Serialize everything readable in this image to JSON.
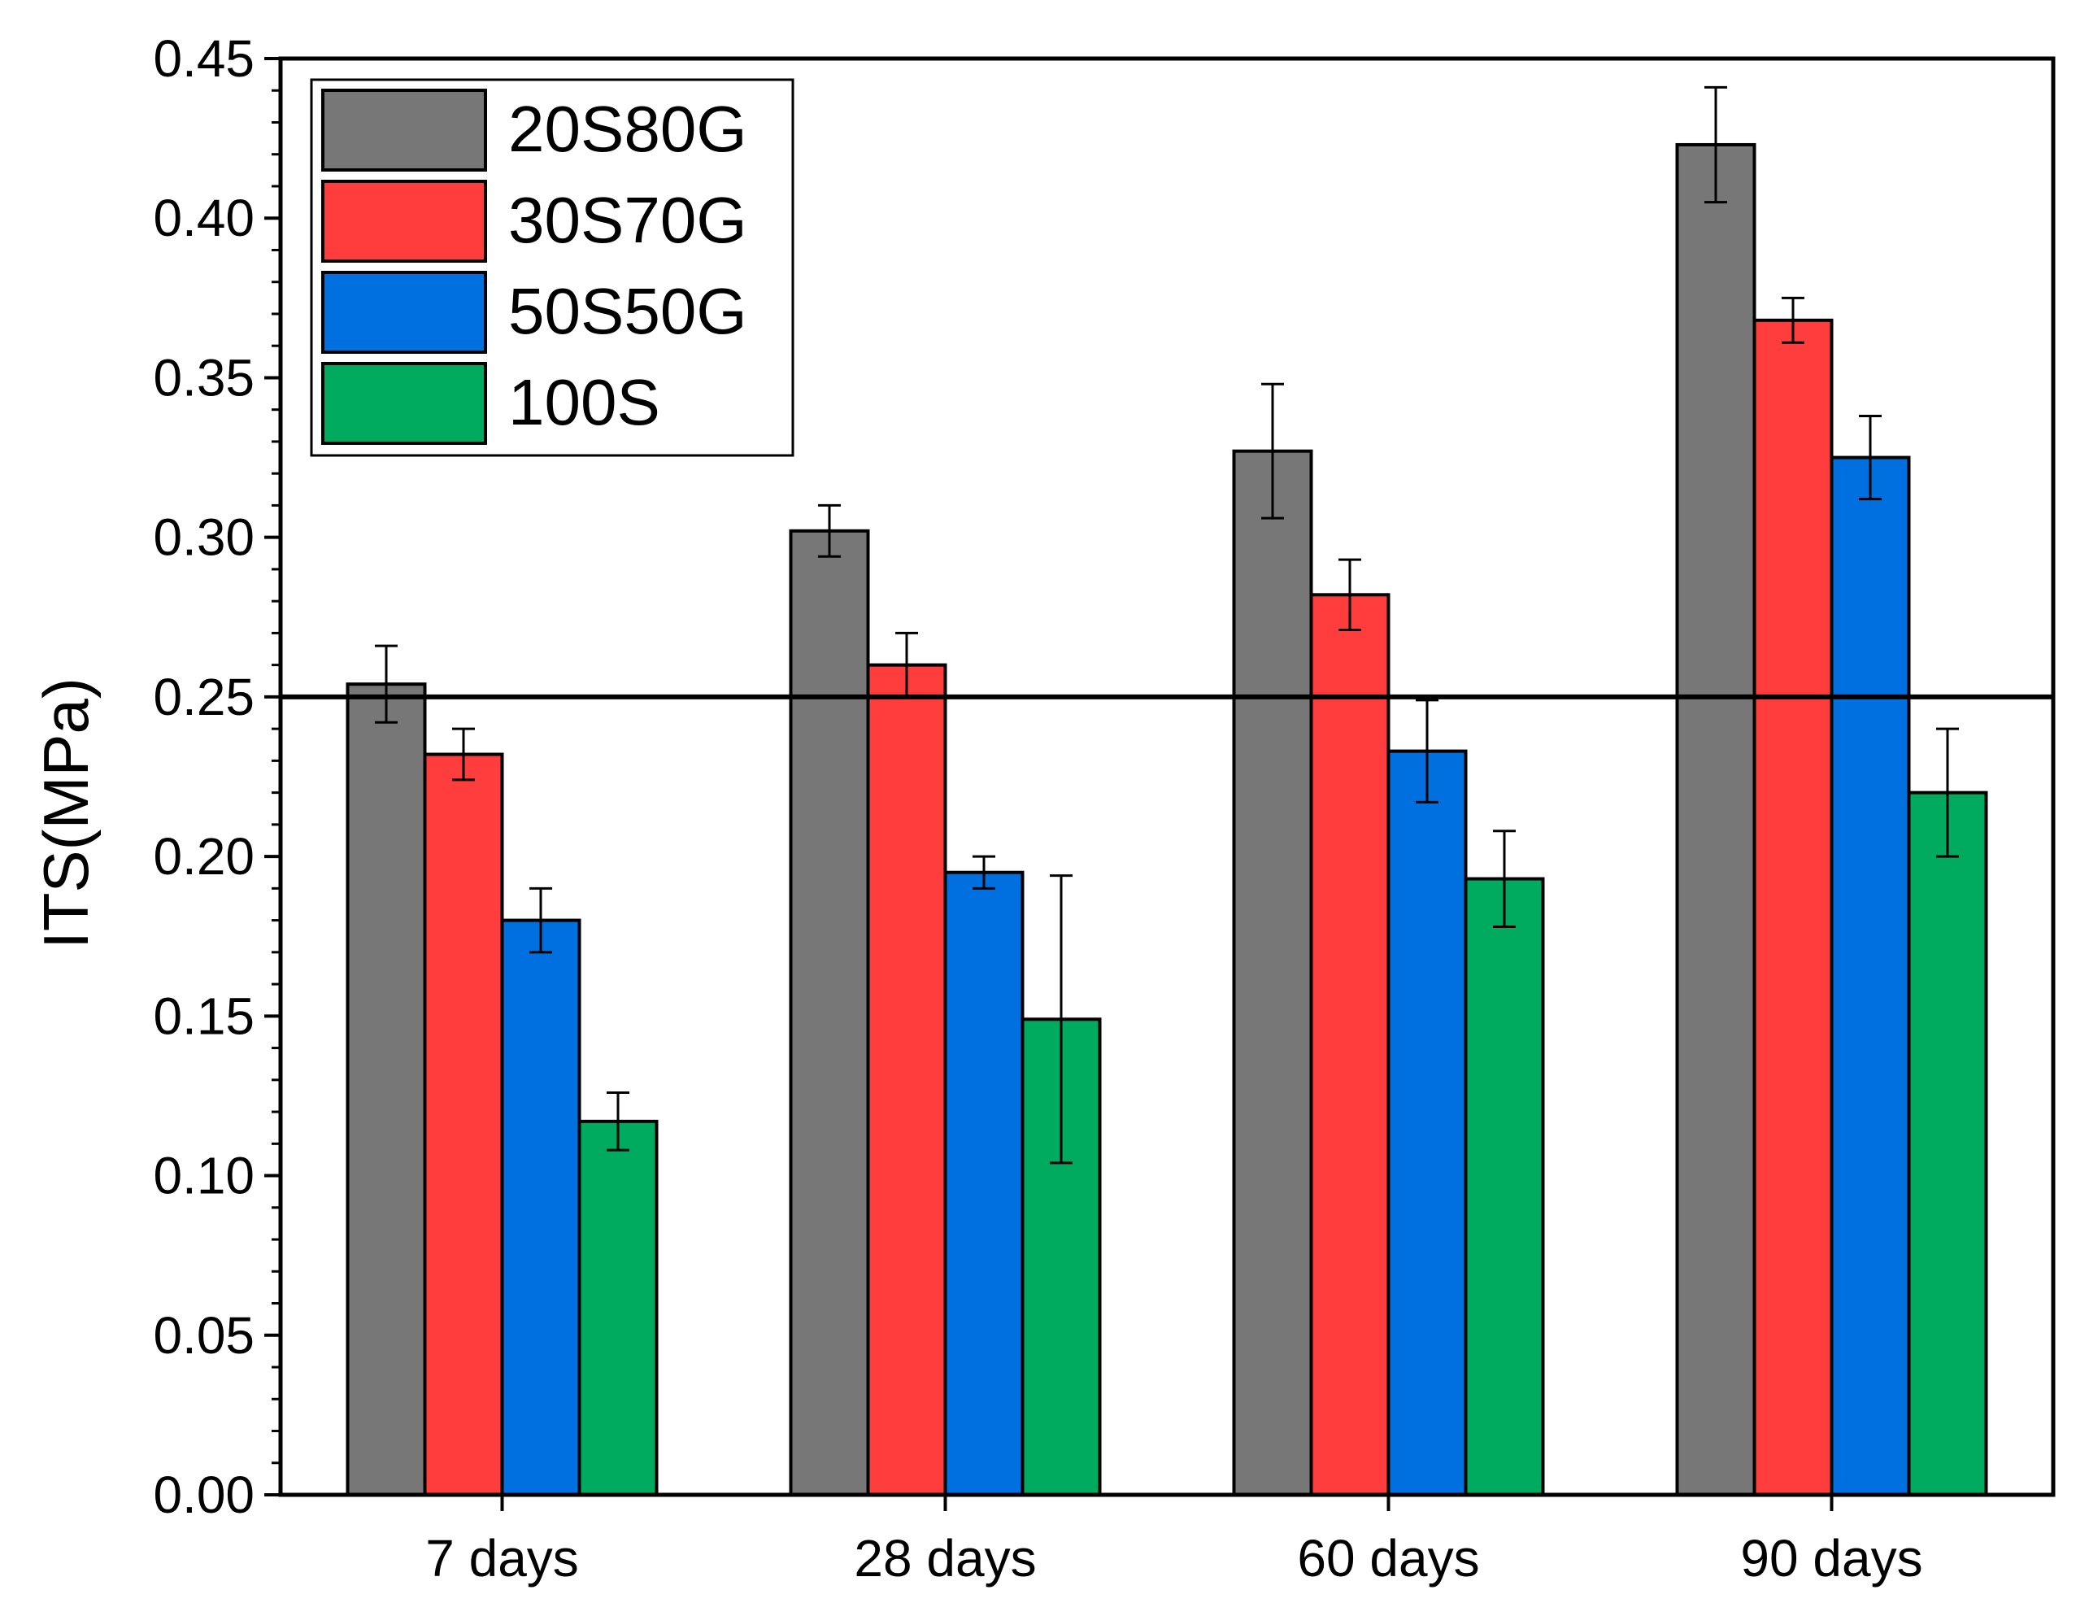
{
  "chart_data": {
    "type": "bar",
    "title": "",
    "xlabel": "",
    "ylabel": "ITS(MPa)",
    "ylim": [
      0,
      0.45
    ],
    "yticks": [
      "0.00",
      "0.05",
      "0.10",
      "0.15",
      "0.20",
      "0.25",
      "0.30",
      "0.35",
      "0.40",
      "0.45"
    ],
    "categories": [
      "7 days",
      "28 days",
      "60 days",
      "90 days"
    ],
    "series": [
      {
        "name": "20S80G",
        "color": "#777777",
        "values": [
          0.254,
          0.302,
          0.327,
          0.423
        ],
        "errors": [
          0.012,
          0.008,
          0.021,
          0.018
        ]
      },
      {
        "name": "30S70G",
        "color": "#ff3d3d",
        "values": [
          0.232,
          0.26,
          0.282,
          0.368
        ],
        "errors": [
          0.008,
          0.01,
          0.011,
          0.007
        ]
      },
      {
        "name": "50S50G",
        "color": "#0070e0",
        "values": [
          0.18,
          0.195,
          0.233,
          0.325
        ],
        "errors": [
          0.01,
          0.005,
          0.016,
          0.013
        ]
      },
      {
        "name": "100S",
        "color": "#00ab5f",
        "values": [
          0.117,
          0.149,
          0.193,
          0.22
        ],
        "errors": [
          0.009,
          0.045,
          0.015,
          0.02
        ]
      }
    ],
    "reference_line": 0.25,
    "legend_position": "top-left",
    "grid": false
  }
}
